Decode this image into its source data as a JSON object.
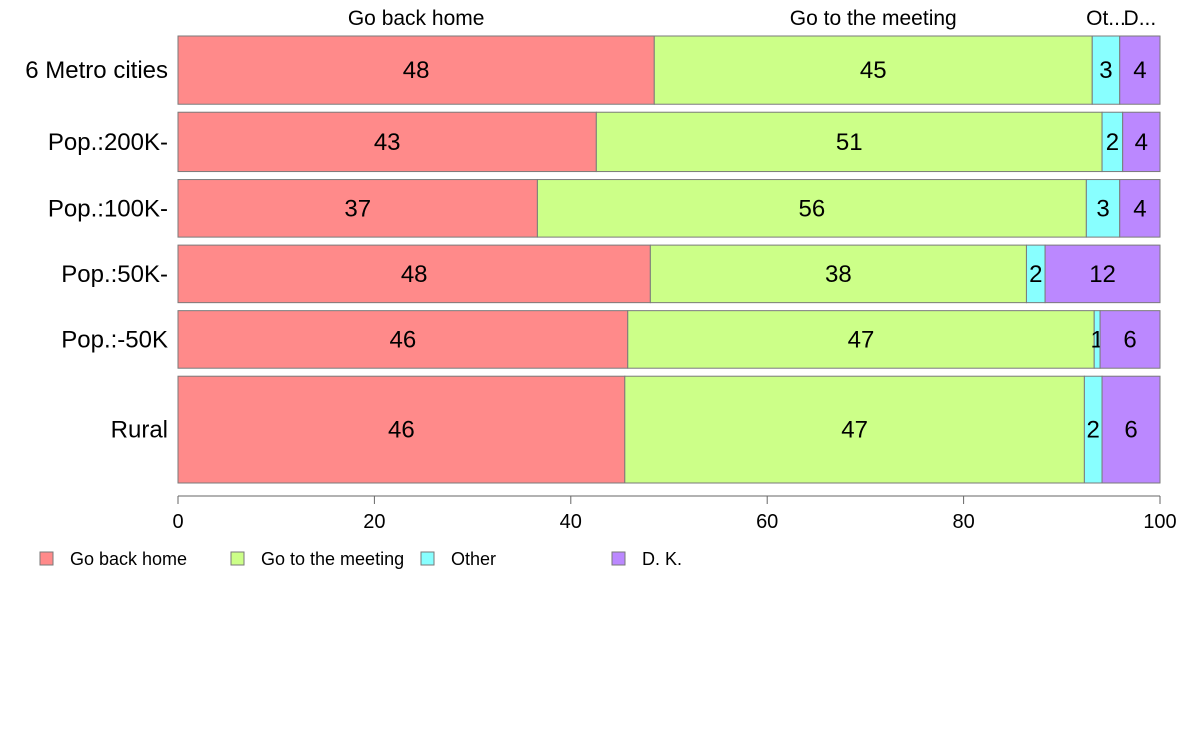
{
  "chart_data": {
    "type": "bar",
    "orientation": "horizontal",
    "stacked": true,
    "title": "",
    "xlabel": "",
    "ylabel": "",
    "xlim": [
      0,
      100
    ],
    "x_ticks": [
      "0",
      "20",
      "40",
      "60",
      "80",
      "100"
    ],
    "categories": [
      "6 Metro cities",
      "Pop.:200K-",
      "Pop.:100K-",
      "Pop.:50K-",
      "Pop.:-50K",
      "Rural"
    ],
    "row_weights": [
      1.15,
      1.0,
      0.97,
      0.97,
      0.97,
      1.8
    ],
    "series": [
      {
        "name": "Go back home",
        "color": "#ff8a8a",
        "values": [
          48.5,
          42.6,
          36.6,
          48.1,
          45.8,
          45.5
        ]
      },
      {
        "name": "Go to the meeting",
        "color": "#ccff88",
        "values": [
          44.6,
          51.5,
          55.9,
          38.3,
          47.5,
          46.8
        ]
      },
      {
        "name": "Other",
        "color": "#88ffff",
        "values": [
          2.8,
          2.1,
          3.4,
          1.9,
          0.6,
          1.8
        ]
      },
      {
        "name": "D. K.",
        "color": "#bb88ff",
        "values": [
          4.1,
          3.8,
          4.1,
          11.7,
          6.1,
          5.9
        ]
      }
    ],
    "data_labels": [
      [
        "48",
        "45",
        "3",
        "4"
      ],
      [
        "43",
        "51",
        "2",
        "4"
      ],
      [
        "37",
        "56",
        "3",
        "4"
      ],
      [
        "48",
        "38",
        "2",
        "12"
      ],
      [
        "46",
        "47",
        "1",
        "6"
      ],
      [
        "46",
        "47",
        "2",
        "6"
      ]
    ],
    "top_labels": [
      "Go back home",
      "Go to the meeting",
      "Ot...",
      "D..."
    ],
    "legend": {
      "placement": "bottom-left",
      "entries": [
        "Go back home",
        "Go to the meeting",
        "Other",
        "D. K."
      ]
    },
    "grid": false
  }
}
